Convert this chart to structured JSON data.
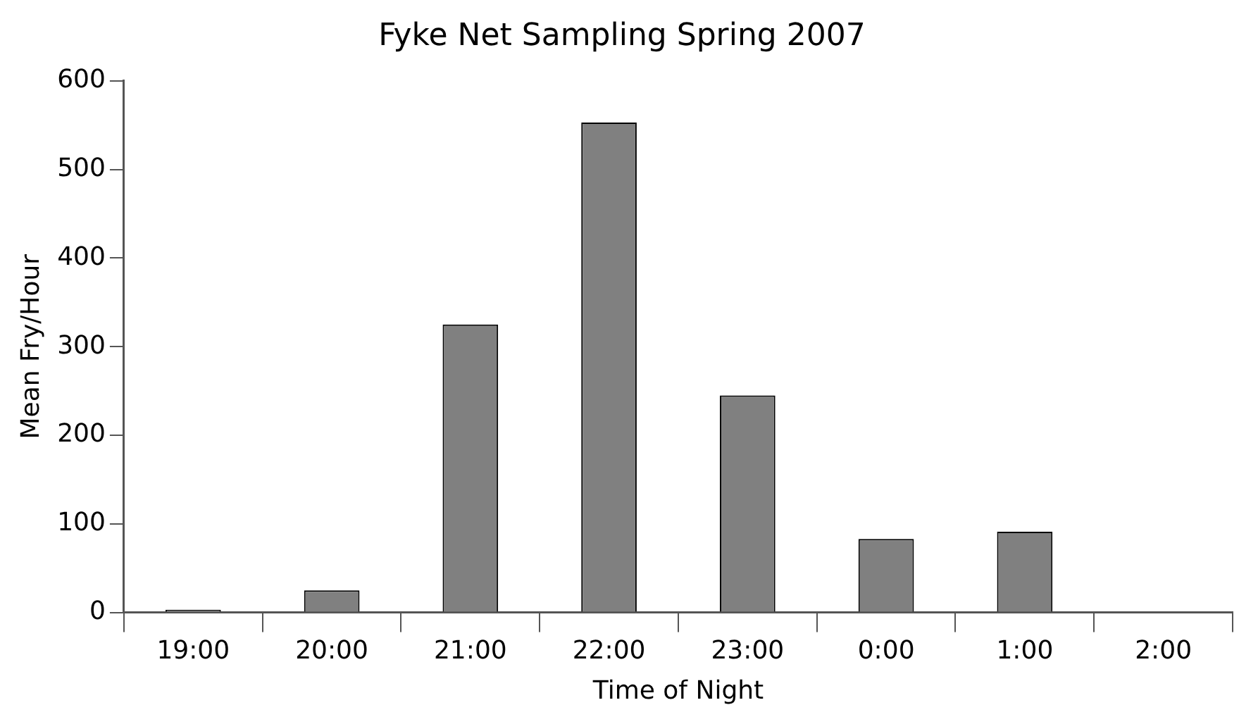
{
  "chart_data": {
    "type": "bar",
    "title": "Fyke Net Sampling Spring 2007",
    "xlabel": "Time of Night",
    "ylabel": "Mean Fry/Hour",
    "categories": [
      "19:00",
      "20:00",
      "21:00",
      "22:00",
      "23:00",
      "0:00",
      "1:00",
      "2:00"
    ],
    "values": [
      3,
      25,
      325,
      553,
      245,
      83,
      91,
      0
    ],
    "color": "#808080",
    "ylim": [
      0,
      600
    ],
    "yticks": [
      0,
      100,
      200,
      300,
      400,
      500,
      600
    ],
    "grid": false,
    "legend": false
  }
}
